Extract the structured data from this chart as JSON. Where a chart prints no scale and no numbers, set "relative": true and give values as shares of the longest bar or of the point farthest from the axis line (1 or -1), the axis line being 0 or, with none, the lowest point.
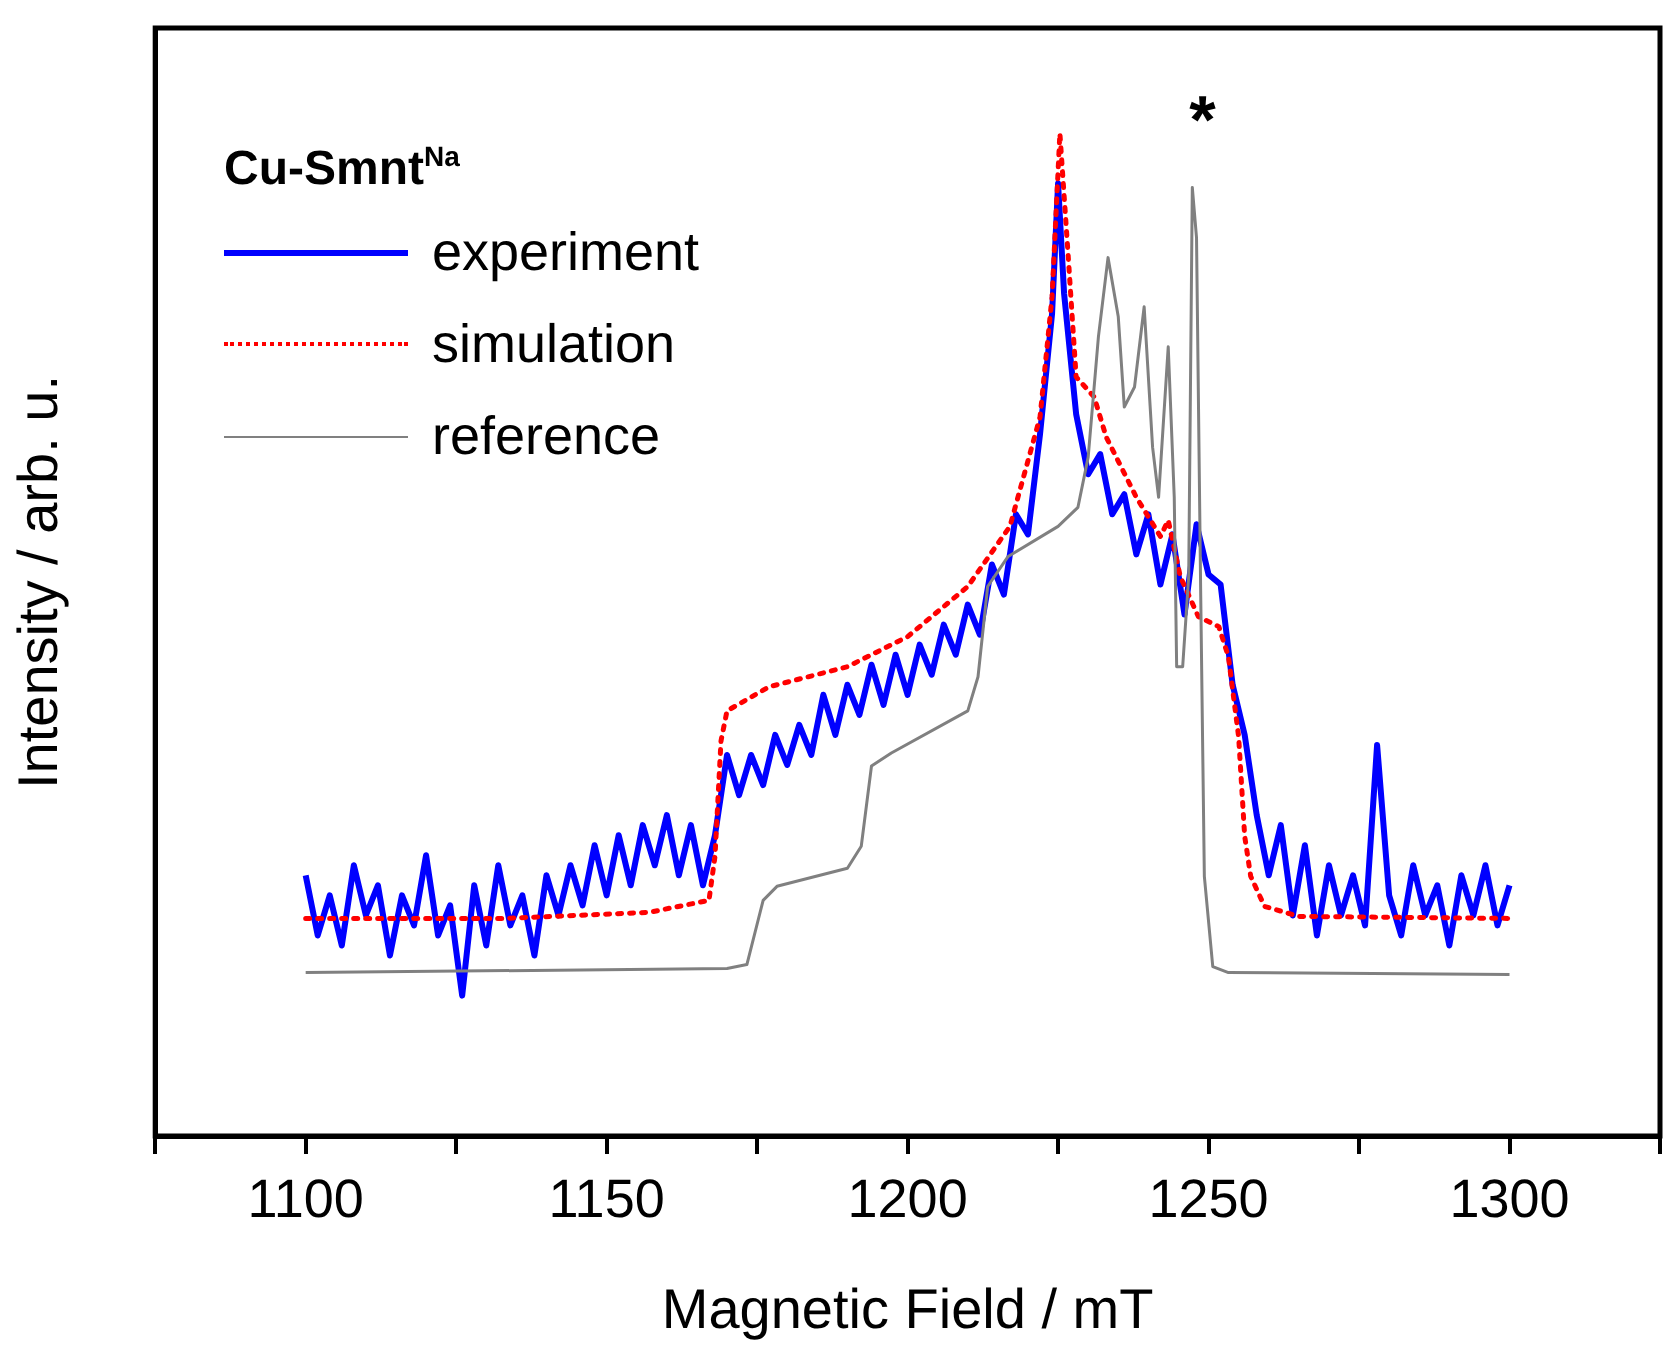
{
  "chart_data": {
    "type": "line",
    "relative": true,
    "xlabel": "Magnetic Field / mT",
    "ylabel": "Intensity / arb. u.",
    "legend_title": "Cu-Smnt$^{Na}$",
    "legend": "top left",
    "grid": false,
    "tick_labels": "x",
    "marker": "none",
    "xlim": [
      1075,
      1325
    ],
    "xticks": [
      {
        "value": 1075,
        "label": null
      },
      1100,
      {
        "value": 1125,
        "label": null
      },
      1150,
      {
        "value": 1175,
        "label": null
      },
      1200,
      {
        "value": 1225,
        "label": null
      },
      1250,
      {
        "value": 1275,
        "label": null
      },
      1300,
      {
        "value": 1325,
        "label": null
      }
    ],
    "annotations": [
      "*"
    ],
    "series": [
      {
        "name": "experiment",
        "color": "#0000ff",
        "line_style": "solid",
        "x": [
          1100,
          1102,
          1104,
          1106,
          1108,
          1110,
          1112,
          1114,
          1116,
          1118,
          1120,
          1122,
          1124,
          1126,
          1128,
          1130,
          1132,
          1134,
          1136,
          1138,
          1140,
          1142,
          1144,
          1146,
          1148,
          1150,
          1152,
          1154,
          1156,
          1158,
          1160,
          1162,
          1164,
          1166,
          1168,
          1170,
          1172,
          1174,
          1176,
          1178,
          1180,
          1182,
          1184,
          1186,
          1188,
          1190,
          1192,
          1194,
          1196,
          1198,
          1200,
          1202,
          1204,
          1206,
          1208,
          1210,
          1212,
          1214,
          1216,
          1218,
          1220,
          1222,
          1224,
          1225,
          1226,
          1228,
          1230,
          1232,
          1234,
          1236,
          1238,
          1240,
          1242,
          1244,
          1246,
          1248,
          1250,
          1252,
          1254,
          1256,
          1258,
          1260,
          1262,
          1264,
          1266,
          1268,
          1270,
          1272,
          1274,
          1276,
          1278,
          1280,
          1282,
          1284,
          1286,
          1288,
          1290,
          1292,
          1294,
          1296,
          1298,
          1300
        ],
        "values": [
          0.26,
          0.2,
          0.24,
          0.19,
          0.27,
          0.22,
          0.25,
          0.18,
          0.24,
          0.21,
          0.28,
          0.2,
          0.23,
          0.14,
          0.25,
          0.19,
          0.27,
          0.21,
          0.24,
          0.18,
          0.26,
          0.22,
          0.27,
          0.23,
          0.29,
          0.24,
          0.3,
          0.25,
          0.31,
          0.27,
          0.32,
          0.26,
          0.31,
          0.25,
          0.3,
          0.38,
          0.34,
          0.38,
          0.35,
          0.4,
          0.37,
          0.41,
          0.38,
          0.44,
          0.4,
          0.45,
          0.42,
          0.47,
          0.43,
          0.48,
          0.44,
          0.49,
          0.46,
          0.51,
          0.48,
          0.53,
          0.5,
          0.57,
          0.54,
          0.62,
          0.6,
          0.7,
          0.82,
          0.95,
          0.84,
          0.72,
          0.66,
          0.68,
          0.62,
          0.64,
          0.58,
          0.62,
          0.55,
          0.6,
          0.52,
          0.61,
          0.56,
          0.55,
          0.45,
          0.4,
          0.32,
          0.26,
          0.31,
          0.22,
          0.29,
          0.2,
          0.27,
          0.22,
          0.26,
          0.21,
          0.39,
          0.24,
          0.2,
          0.27,
          0.22,
          0.25,
          0.19,
          0.26,
          0.22,
          0.27,
          0.21,
          0.25
        ]
      },
      {
        "name": "simulation",
        "color": "#ff0000",
        "line_style": "dotted",
        "x": [
          1100,
          1133,
          1157,
          1167,
          1168,
          1169,
          1170,
          1177,
          1190,
          1200,
          1210,
          1217,
          1222,
          1224,
          1225.3,
          1226.7,
          1228,
          1231,
          1233,
          1238,
          1242,
          1243.3,
          1245.3,
          1248.3,
          1251.7,
          1253.3,
          1255,
          1256,
          1257,
          1259.3,
          1265,
          1300
        ],
        "values": [
          0.217,
          0.217,
          0.223,
          0.235,
          0.279,
          0.394,
          0.424,
          0.448,
          0.468,
          0.498,
          0.548,
          0.608,
          0.717,
          0.837,
          1,
          0.876,
          0.757,
          0.737,
          0.697,
          0.637,
          0.598,
          0.614,
          0.558,
          0.518,
          0.508,
          0.478,
          0.398,
          0.299,
          0.259,
          0.229,
          0.219,
          0.217
        ]
      },
      {
        "name": "reference",
        "color": "#808080",
        "line_style": "solid",
        "x": [
          1100,
          1170,
          1173.3,
          1176,
          1178.3,
          1190,
          1192.3,
          1194,
          1197.3,
          1210,
          1211.7,
          1213.3,
          1216.7,
          1225,
          1228.3,
          1230,
          1231.7,
          1233.3,
          1235,
          1236,
          1237.7,
          1239.3,
          1240.7,
          1241.7,
          1243.3,
          1244.3,
          1244.7,
          1245.7,
          1246.7,
          1247.3,
          1248,
          1248.7,
          1249.3,
          1250.7,
          1253.3,
          1300
        ],
        "values": [
          0.163,
          0.167,
          0.171,
          0.235,
          0.249,
          0.267,
          0.289,
          0.369,
          0.382,
          0.424,
          0.458,
          0.548,
          0.578,
          0.608,
          0.627,
          0.677,
          0.797,
          0.876,
          0.817,
          0.727,
          0.747,
          0.827,
          0.687,
          0.637,
          0.787,
          0.637,
          0.468,
          0.468,
          0.558,
          0.946,
          0.896,
          0.538,
          0.259,
          0.169,
          0.163,
          0.161
        ]
      }
    ]
  }
}
